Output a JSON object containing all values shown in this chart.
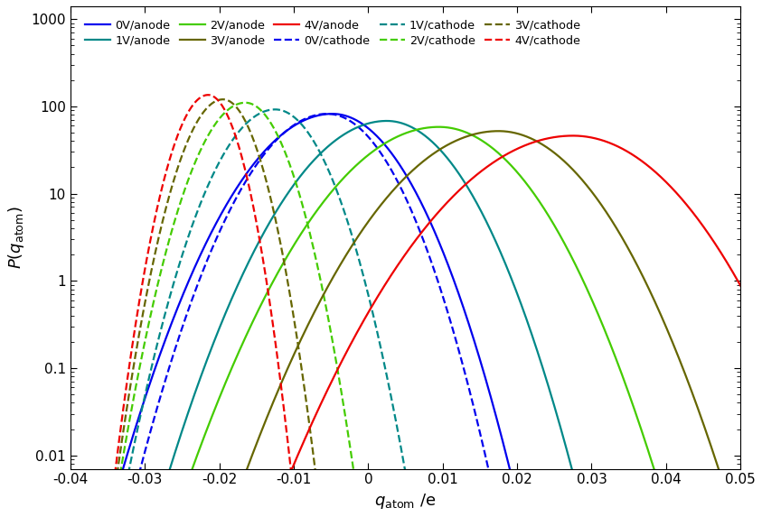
{
  "title": "",
  "xlabel": "$q_\\mathrm{atom}$ /e",
  "ylabel": "$P(q_\\mathrm{atom})$",
  "xlim": [
    -0.04,
    0.05
  ],
  "ylim": [
    0.007,
    1400
  ],
  "colors": {
    "0V": "#0000EE",
    "1V": "#008888",
    "2V": "#44CC00",
    "3V": "#666600",
    "4V": "#EE0000"
  },
  "curves": [
    {
      "label": "0V/anode",
      "voltage": "0V",
      "style": "solid",
      "mu": -0.0048,
      "sigma_l": 0.0065,
      "sigma_r": 0.0055,
      "peak": 82
    },
    {
      "label": "0V/cathode",
      "voltage": "0V",
      "style": "dashed",
      "mu": -0.0055,
      "sigma_l": 0.0058,
      "sigma_r": 0.005,
      "peak": 82
    },
    {
      "label": "1V/anode",
      "voltage": "1V",
      "style": "solid",
      "mu": 0.0025,
      "sigma_l": 0.0068,
      "sigma_r": 0.0058,
      "peak": 68
    },
    {
      "label": "1V/cathode",
      "voltage": "1V",
      "style": "dashed",
      "mu": -0.0125,
      "sigma_l": 0.0045,
      "sigma_r": 0.004,
      "peak": 92
    },
    {
      "label": "2V/anode",
      "voltage": "2V",
      "style": "solid",
      "mu": 0.0095,
      "sigma_l": 0.0078,
      "sigma_r": 0.0068,
      "peak": 58
    },
    {
      "label": "2V/cathode",
      "voltage": "2V",
      "style": "dashed",
      "mu": -0.0165,
      "sigma_l": 0.0038,
      "sigma_r": 0.0033,
      "peak": 110
    },
    {
      "label": "3V/anode",
      "voltage": "3V",
      "style": "solid",
      "mu": 0.0175,
      "sigma_l": 0.008,
      "sigma_r": 0.007,
      "peak": 52
    },
    {
      "label": "3V/cathode",
      "voltage": "3V",
      "style": "dashed",
      "mu": -0.0195,
      "sigma_l": 0.0032,
      "sigma_r": 0.0028,
      "peak": 120
    },
    {
      "label": "4V/anode",
      "voltage": "4V",
      "style": "solid",
      "mu": 0.0275,
      "sigma_l": 0.009,
      "sigma_r": 0.008,
      "peak": 46
    },
    {
      "label": "4V/cathode",
      "voltage": "4V",
      "style": "dashed",
      "mu": -0.0215,
      "sigma_l": 0.0028,
      "sigma_r": 0.0025,
      "peak": 135
    }
  ],
  "legend_order_row1": [
    "0V/anode",
    "1V/anode",
    "2V/anode",
    "3V/anode",
    "4V/anode"
  ],
  "legend_order_row2": [
    "0V/cathode",
    "1V/cathode",
    "2V/cathode",
    "3V/cathode",
    "4V/cathode"
  ]
}
